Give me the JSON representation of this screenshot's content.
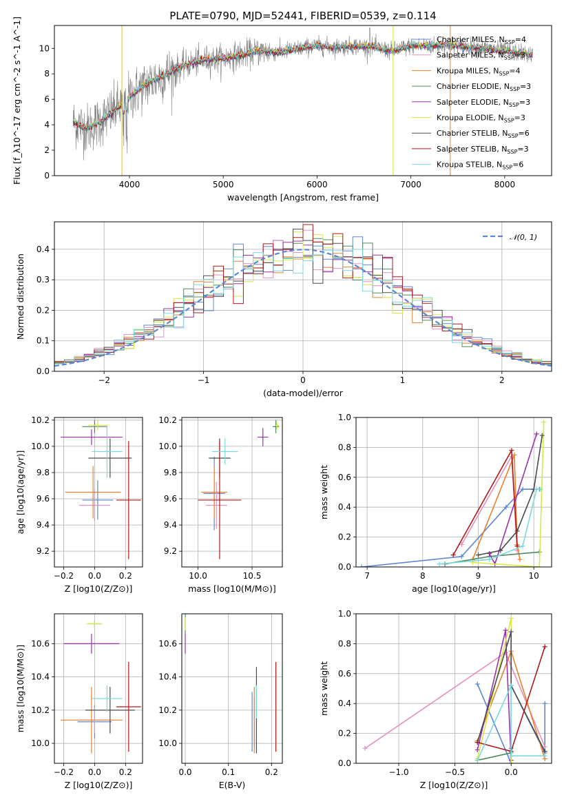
{
  "figure": {
    "title": "PLATE=0790, MJD=52441, FIBERID=0539, z=0.114"
  },
  "models": [
    {
      "name": "Chabrier MILES, N_SSP=4",
      "color": "#5b86d6"
    },
    {
      "name": "Salpeter MILES, N_SSP=3",
      "color": "#e68fbf"
    },
    {
      "name": "Kroupa MILES, N_SSP=4",
      "color": "#e8802a"
    },
    {
      "name": "Chabrier ELODIE, N_SSP=3",
      "color": "#4f8a5a"
    },
    {
      "name": "Salpeter ELODIE, N_SSP=3",
      "color": "#9b30b0"
    },
    {
      "name": "Kroupa ELODIE, N_SSP=3",
      "color": "#d8e840"
    },
    {
      "name": "Chabrier STELIB, N_SSP=6",
      "color": "#4a4a4a"
    },
    {
      "name": "Salpeter STELIB, N_SSP=3",
      "color": "#b01818"
    },
    {
      "name": "Kroupa STELIB, N_SSP=6",
      "color": "#7ad9e0"
    }
  ],
  "chart_data": [
    {
      "id": "spectrum",
      "type": "line",
      "title": "PLATE=0790, MJD=52441, FIBERID=0539, z=0.114",
      "xlabel": "wavelength [Angstrom, rest frame]",
      "ylabel": "Flux [f_λ10^-17 erg cm^-2 s^-1 A^-1]",
      "xlim": [
        3200,
        8500
      ],
      "ylim": [
        0,
        11.8
      ],
      "xticks": [
        4000,
        5000,
        6000,
        7000,
        8000
      ],
      "yticks": [
        0,
        2,
        4,
        6,
        8,
        10
      ],
      "grid": false,
      "legend": "right",
      "continuum": {
        "x": [
          3400,
          3550,
          3700,
          3850,
          3950,
          4050,
          4200,
          4400,
          4600,
          4800,
          5000,
          5200,
          5400,
          5600,
          5800,
          6000,
          6200,
          6400,
          6600,
          6800,
          7000,
          7200,
          7400,
          7600,
          7800,
          8000,
          8200,
          8300
        ],
        "y": [
          4.2,
          3.7,
          4.3,
          5.2,
          5.8,
          6.5,
          7.3,
          8.0,
          8.7,
          9.1,
          9.2,
          9.5,
          9.8,
          9.7,
          10.0,
          10.2,
          10.1,
          10.2,
          10.1,
          9.8,
          10.2,
          10.2,
          10.3,
          10.1,
          10.0,
          9.8,
          9.6,
          9.5
        ]
      },
      "x": [
        3400,
        8300
      ]
    },
    {
      "id": "residuals",
      "type": "bar",
      "xlabel": "(data-model)/error",
      "ylabel": "Normed distribution",
      "xlim": [
        -2.5,
        2.5
      ],
      "ylim": [
        0,
        0.49
      ],
      "xticks": [
        -2,
        -1,
        0,
        1,
        2
      ],
      "yticks": [
        0.0,
        0.1,
        0.2,
        0.3,
        0.4
      ],
      "grid": true,
      "legend": "top-right",
      "legend_label": "𝒩(0, 1)",
      "bins": [
        -2.5,
        2.5
      ],
      "binwidth": 0.1
    },
    {
      "id": "age-vs-Z",
      "type": "scatter",
      "xlabel": "Z [log10(Z/Z⊙)]",
      "ylabel": "age  [log10(age/yr)]",
      "xlim": [
        -0.26,
        0.31
      ],
      "ylim": [
        9.08,
        10.22
      ],
      "xticks": [
        -0.2,
        0.0,
        0.2
      ],
      "yticks": [
        9.2,
        9.4,
        9.6,
        9.8,
        10.0,
        10.2
      ],
      "grid": true,
      "points": [
        {
          "x": 0.02,
          "y": 9.59,
          "xe": 0.1,
          "ye": 0.15
        },
        {
          "x": 0.0,
          "y": 9.55,
          "xe": 0.1,
          "ye": 0.12
        },
        {
          "x": -0.01,
          "y": 9.65,
          "xe": 0.18,
          "ye": 0.2
        },
        {
          "x": 0.0,
          "y": 10.15,
          "xe": 0.08,
          "ye": 0.05
        },
        {
          "x": -0.02,
          "y": 10.07,
          "xe": 0.2,
          "ye": 0.06
        },
        {
          "x": 0.02,
          "y": 10.16,
          "xe": 0.06,
          "ye": 0.04
        },
        {
          "x": 0.1,
          "y": 9.91,
          "xe": 0.14,
          "ye": 0.15
        },
        {
          "x": 0.22,
          "y": 9.59,
          "xe": 0.08,
          "ye": 0.45
        },
        {
          "x": 0.08,
          "y": 9.96,
          "xe": 0.1,
          "ye": 0.2
        }
      ]
    },
    {
      "id": "age-vs-mass",
      "type": "scatter",
      "xlabel": "mass [log10(M/M⊙)]",
      "ylabel": "",
      "xlim": [
        9.85,
        10.78
      ],
      "ylim": [
        9.08,
        10.22
      ],
      "xticks": [
        10.0,
        10.5
      ],
      "yticks": [
        9.2,
        9.4,
        9.6,
        9.8,
        10.0,
        10.2
      ],
      "grid": true,
      "points": [
        {
          "x": 10.15,
          "y": 9.64,
          "xe": 0.1,
          "ye": 0.28
        },
        {
          "x": 10.17,
          "y": 9.55,
          "xe": 0.1,
          "ye": 0.18
        },
        {
          "x": 10.15,
          "y": 9.65,
          "xe": 0.12,
          "ye": 0.2
        },
        {
          "x": 10.72,
          "y": 10.15,
          "xe": 0.03,
          "ye": 0.05
        },
        {
          "x": 10.6,
          "y": 10.07,
          "xe": 0.05,
          "ye": 0.07
        },
        {
          "x": 10.73,
          "y": 10.16,
          "xe": 0.02,
          "ye": 0.03
        },
        {
          "x": 10.2,
          "y": 9.91,
          "xe": 0.1,
          "ye": 0.15
        },
        {
          "x": 10.2,
          "y": 9.59,
          "xe": 0.2,
          "ye": 0.45
        },
        {
          "x": 10.25,
          "y": 9.96,
          "xe": 0.12,
          "ye": 0.1
        }
      ]
    },
    {
      "id": "massweight-vs-age",
      "type": "line",
      "xlabel": "age  [log10(age/yr)]",
      "ylabel": "mass weight",
      "xlim": [
        6.8,
        10.32
      ],
      "ylim": [
        0,
        1.0
      ],
      "xticks": [
        7,
        8,
        9,
        10
      ],
      "yticks": [
        0.0,
        0.2,
        0.4,
        0.6,
        0.8,
        1.0
      ],
      "grid": true,
      "series": [
        {
          "x": [
            6.9,
            8.7,
            9.5,
            9.8,
            10.1
          ],
          "y": [
            0.0,
            0.07,
            0.4,
            0.52,
            0.52
          ]
        },
        {
          "x": [
            8.7,
            9.6,
            9.7
          ],
          "y": [
            0.15,
            0.74,
            0.11
          ]
        },
        {
          "x": [
            8.9,
            9.65,
            9.7,
            9.75
          ],
          "y": [
            0.05,
            0.75,
            0.15,
            0.05
          ]
        },
        {
          "x": [
            8.4,
            9.2,
            10.1
          ],
          "y": [
            0.02,
            0.07,
            0.1
          ]
        },
        {
          "x": [
            9.2,
            9.3,
            10.05
          ],
          "y": [
            0.09,
            0.02,
            0.89
          ]
        },
        {
          "x": [
            8.9,
            10.1,
            10.18
          ],
          "y": [
            0.03,
            0.0,
            0.97
          ]
        },
        {
          "x": [
            9.0,
            9.4,
            9.7,
            10.0,
            10.15
          ],
          "y": [
            0.08,
            0.11,
            0.24,
            0.52,
            0.88
          ]
        },
        {
          "x": [
            8.55,
            9.6,
            9.7
          ],
          "y": [
            0.08,
            0.78,
            0.14
          ]
        },
        {
          "x": [
            8.3,
            9.2,
            9.8,
            10.05,
            10.12
          ],
          "y": [
            0.02,
            0.05,
            0.14,
            0.52,
            0.52
          ]
        }
      ]
    },
    {
      "id": "mass-vs-Z",
      "type": "scatter",
      "xlabel": "Z [log10(Z/Z⊙)]",
      "ylabel": "mass [log10(M/M⊙)]",
      "xlim": [
        -0.26,
        0.31
      ],
      "ylim": [
        9.88,
        10.78
      ],
      "xticks": [
        -0.2,
        0.0,
        0.2
      ],
      "yticks": [
        10.0,
        10.2,
        10.4,
        10.6
      ],
      "grid": true,
      "points": [
        {
          "x": 0.0,
          "y": 10.13,
          "xe": 0.11,
          "ye": 0.1
        },
        {
          "x": 0.0,
          "y": 10.14,
          "xe": 0.1,
          "ye": 0.08
        },
        {
          "x": -0.02,
          "y": 10.14,
          "xe": 0.2,
          "ye": 0.2
        },
        {
          "x": 0.0,
          "y": 10.72,
          "xe": 0.04,
          "ye": 0.02
        },
        {
          "x": -0.02,
          "y": 10.6,
          "xe": 0.18,
          "ye": 0.06
        },
        {
          "x": 0.0,
          "y": 10.72,
          "xe": 0.05,
          "ye": 0.02
        },
        {
          "x": 0.1,
          "y": 10.2,
          "xe": 0.16,
          "ye": 0.14
        },
        {
          "x": 0.22,
          "y": 10.22,
          "xe": 0.08,
          "ye": 0.27
        },
        {
          "x": 0.08,
          "y": 10.27,
          "xe": 0.1,
          "ye": 0.08
        }
      ]
    },
    {
      "id": "mass-vs-EBV",
      "type": "scatter",
      "xlabel": "E(B-V)",
      "ylabel": "",
      "xlim": [
        -0.008,
        0.225
      ],
      "ylim": [
        9.88,
        10.78
      ],
      "xticks": [
        0.0,
        0.1,
        0.2
      ],
      "yticks": [
        10.0,
        10.2,
        10.4,
        10.6
      ],
      "grid": true,
      "points": [
        {
          "x": 0.155,
          "y": 10.13,
          "ye": 0.18
        },
        {
          "x": 0.16,
          "y": 10.13,
          "ye": 0.15
        },
        {
          "x": 0.16,
          "y": 10.14,
          "ye": 0.2
        },
        {
          "x": 0.0,
          "y": 10.72,
          "ye": 0.06
        },
        {
          "x": 0.0,
          "y": 10.6,
          "ye": 0.06
        },
        {
          "x": 0.0,
          "y": 10.72,
          "ye": 0.04
        },
        {
          "x": 0.165,
          "y": 10.2,
          "ye": 0.26
        },
        {
          "x": 0.21,
          "y": 10.22,
          "ye": 0.27
        },
        {
          "x": 0.165,
          "y": 10.25,
          "ye": 0.1
        }
      ]
    },
    {
      "id": "massweight-vs-Z",
      "type": "line",
      "xlabel": "Z [log10(Z/Z⊙)]",
      "ylabel": "mass weight",
      "xlim": [
        -1.38,
        0.36
      ],
      "ylim": [
        0,
        1.0
      ],
      "xticks": [
        -1.0,
        -0.5,
        0.0
      ],
      "yticks": [
        0.0,
        0.2,
        0.4,
        0.6,
        0.8,
        1.0
      ],
      "grid": true,
      "series": [
        {
          "x": [
            -0.3,
            0.0,
            0.0,
            0.3,
            0.3
          ],
          "y": [
            0.53,
            0.0,
            0.52,
            0.07,
            0.4
          ]
        },
        {
          "x": [
            -1.3,
            -0.05,
            0.3
          ],
          "y": [
            0.1,
            0.74,
            0.11
          ]
        },
        {
          "x": [
            -0.3,
            0.0,
            0.3
          ],
          "y": [
            0.15,
            0.75,
            0.03
          ]
        },
        {
          "x": [
            -0.3,
            0.0,
            0.0
          ],
          "y": [
            0.02,
            0.07,
            0.1
          ]
        },
        {
          "x": [
            -0.3,
            -0.05,
            0.0
          ],
          "y": [
            0.09,
            0.89,
            0.02
          ]
        },
        {
          "x": [
            -0.3,
            0.0,
            0.0
          ],
          "y": [
            0.03,
            0.97,
            0.0
          ]
        },
        {
          "x": [
            -0.3,
            0.0,
            0.0,
            0.3
          ],
          "y": [
            0.14,
            0.88,
            0.52,
            0.08
          ]
        },
        {
          "x": [
            -0.3,
            0.0,
            0.3
          ],
          "y": [
            0.14,
            0.08,
            0.78
          ]
        },
        {
          "x": [
            -0.3,
            0.0,
            0.0,
            0.3
          ],
          "y": [
            0.02,
            0.52,
            0.05,
            0.05
          ]
        }
      ]
    }
  ],
  "layout_legend_note": ""
}
